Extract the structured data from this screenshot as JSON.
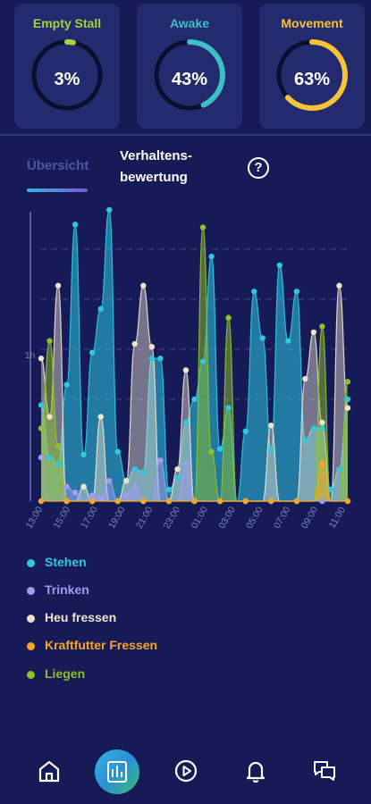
{
  "cards": [
    {
      "title": "Empty Stall",
      "value": "3%",
      "percent": 3,
      "color": "#a8d23c"
    },
    {
      "title": "Awake",
      "value": "43%",
      "percent": 43,
      "color": "#3dbfc8"
    },
    {
      "title": "Movement",
      "value": "63%",
      "percent": 63,
      "color": "#f5c23a"
    }
  ],
  "tabs": {
    "overview": "Übersicht",
    "bewertung": "Verhaltens-\nbewertung"
  },
  "chart_data": {
    "type": "area",
    "x_ticks": [
      "13:00",
      "15:00",
      "17:00",
      "19:00",
      "21:00",
      "23:00",
      "01:00",
      "03:00",
      "05:00",
      "07:00",
      "09:00",
      "11:00"
    ],
    "y_tick_label": "1h",
    "series": [
      {
        "name": "Stehen",
        "color": "#2ec8e0",
        "values": [
          0.33,
          0.15,
          0.13,
          0.4,
          0.95,
          0.16,
          0.51,
          0.66,
          1.0,
          0.17,
          0.07,
          0.11,
          0.1,
          0.49,
          0.49,
          0.04,
          0.08,
          0.27,
          0.35,
          0.48,
          0.84,
          0.18,
          0.32,
          0.0,
          0.24,
          0.72,
          0.56,
          0.18,
          0.81,
          0.55,
          0.72,
          0.21,
          0.25,
          0.25,
          0.04,
          0.11,
          0.35
        ]
      },
      {
        "name": "Trinken",
        "color": "#a09cf0",
        "values": [
          0.15,
          0.0,
          0.0,
          0.05,
          0.03,
          0.0,
          0.02,
          0.01,
          0.07,
          0.0,
          0.02,
          0.05,
          0.0,
          0.0,
          0.14,
          0.0,
          0.0,
          0.13,
          0.0,
          0.0,
          0.0,
          0.0,
          0.0,
          0.0,
          0.0,
          0.0,
          0.0,
          0.0,
          0.0,
          0.0,
          0.0,
          0.0,
          0.0,
          0.0,
          0.0,
          0.0,
          0.0
        ]
      },
      {
        "name": "Heu fressen",
        "color": "#ece3cf",
        "values": [
          0.49,
          0.29,
          0.74,
          0.0,
          0.0,
          0.05,
          0.0,
          0.29,
          0.0,
          0.0,
          0.07,
          0.54,
          0.74,
          0.53,
          0.0,
          0.0,
          0.11,
          0.45,
          0.0,
          0.0,
          0.0,
          0.0,
          0.0,
          0.0,
          0.0,
          0.0,
          0.0,
          0.26,
          0.0,
          0.0,
          0.0,
          0.42,
          0.58,
          0.27,
          0.0,
          0.74,
          0.32
        ]
      },
      {
        "name": "Kraftfutter Fressen",
        "color": "#f6a52a",
        "values": [
          0.0,
          0.0,
          0.0,
          0.0,
          0.0,
          0.0,
          0.0,
          0.0,
          0.0,
          0.0,
          0.0,
          0.0,
          0.0,
          0.0,
          0.0,
          0.0,
          0.0,
          0.0,
          0.0,
          0.0,
          0.0,
          0.0,
          0.0,
          0.0,
          0.0,
          0.0,
          0.0,
          0.0,
          0.0,
          0.0,
          0.0,
          0.0,
          0.0,
          0.13,
          0.0,
          0.0,
          0.0
        ]
      },
      {
        "name": "Liegen",
        "color": "#8ec02a",
        "values": [
          0.25,
          0.55,
          0.19,
          0.0,
          0.0,
          0.0,
          0.0,
          0.0,
          0.0,
          0.0,
          0.0,
          0.0,
          0.0,
          0.0,
          0.0,
          0.0,
          0.0,
          0.0,
          0.0,
          0.94,
          0.17,
          0.0,
          0.63,
          0.0,
          0.0,
          0.0,
          0.0,
          0.0,
          0.0,
          0.0,
          0.0,
          0.0,
          0.0,
          0.6,
          0.0,
          0.0,
          0.41
        ]
      }
    ]
  },
  "nav": [
    {
      "icon": "home-icon",
      "active": false
    },
    {
      "icon": "chart-icon",
      "active": true
    },
    {
      "icon": "play-icon",
      "active": false
    },
    {
      "icon": "bell-icon",
      "active": false
    },
    {
      "icon": "chat-icon",
      "active": false
    }
  ]
}
